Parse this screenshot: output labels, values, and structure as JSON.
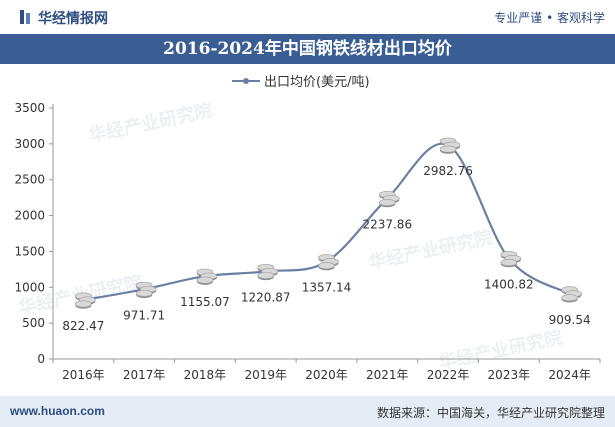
{
  "header": {
    "brand": "华经情报网",
    "tagline": "专业严谨 • 客观科学"
  },
  "title": "2016-2024年中国钢铁线材出口均价",
  "footer": {
    "url": "www.huaon.com",
    "source": "数据来源：中国海关，华经产业研究院整理"
  },
  "watermark": "华经产业研究院",
  "colors": {
    "line": "#6b7fa3",
    "title_bg": "#3a5e94",
    "footer_bg": "#e4ecf5"
  },
  "chart_data": {
    "type": "line",
    "categories": [
      "2016年",
      "2017年",
      "2018年",
      "2019年",
      "2020年",
      "2021年",
      "2022年",
      "2023年",
      "2024年"
    ],
    "series": [
      {
        "name": "出口均价(美元/吨)",
        "values": [
          822.47,
          971.71,
          1155.07,
          1220.87,
          1357.14,
          2237.86,
          2982.76,
          1400.82,
          909.54
        ]
      }
    ],
    "data_labels": [
      "822.47",
      "971.71",
      "1155.07",
      "1220.87",
      "1357.14",
      "2237.86",
      "2982.76",
      "1400.82",
      "909.54"
    ],
    "y_ticks": [
      "0",
      "500",
      "1000",
      "1500",
      "2000",
      "2500",
      "3000",
      "3500"
    ],
    "ylim": [
      0,
      3500
    ],
    "legend_position": "top",
    "grid": false,
    "marker": "coin-stack"
  }
}
